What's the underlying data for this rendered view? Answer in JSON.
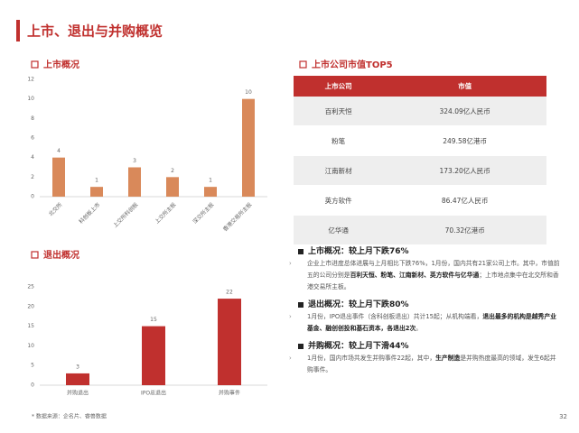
{
  "header": {
    "title": "上市、退出与并购概览"
  },
  "chart_data": [
    {
      "type": "bar",
      "title": "上市概况",
      "categories": [
        "北交所",
        "科创板上市",
        "上交所科创板",
        "上交所主板",
        "深交所主板",
        "香港交易所主板"
      ],
      "values": [
        4,
        1,
        3,
        2,
        1,
        10
      ],
      "color": "#d9895a",
      "ylim": [
        0,
        12
      ],
      "yticks": [
        0,
        2,
        4,
        6,
        8,
        10,
        12
      ]
    },
    {
      "type": "bar",
      "title": "退出概况",
      "categories": [
        "并购退出",
        "IPO总退出",
        "并购事件"
      ],
      "values": [
        3,
        15,
        22
      ],
      "color": "#c0302e",
      "ylim": [
        0,
        25
      ],
      "yticks": [
        0,
        5,
        10,
        15,
        20,
        25
      ]
    }
  ],
  "table": {
    "title": "上市公司市值TOP5",
    "columns": [
      "上市公司",
      "市值"
    ],
    "rows": [
      [
        "百利天恒",
        "324.09亿人民币"
      ],
      [
        "粉笔",
        "249.58亿港币"
      ],
      [
        "江南新材",
        "173.20亿人民币"
      ],
      [
        "英方软件",
        "86.47亿人民币"
      ],
      [
        "亿华通",
        "70.32亿港币"
      ]
    ]
  },
  "sections": [
    {
      "heading": "上市概况：较上月下跌76%",
      "text": [
        "企业上市进度总体进展与上月相比下跌76%，1月份，国内共有21家公司上市。其中，市值前五的公司分别是",
        "百利天恒、粉笔、江南新材、英方软件与亿华通",
        "；上市地点集中在北交所和香港交易所主板。"
      ]
    },
    {
      "heading": "退出概况：较上月下跌80%",
      "text": [
        "1月份，IPO退出事件（含科创板退出）共计15起；从机构端看，",
        "退出最多的机构是越秀产业基金、融创创投和基石资本，各退出2次",
        "。"
      ]
    },
    {
      "heading": "并购概况：较上月下滑44%",
      "text": [
        "1月份，国内市场共发生并购事件22起，其中，",
        "生产制造",
        "是并购热度最高的领域，发生6起并购事件。"
      ]
    }
  ],
  "footer": {
    "source": "* 数据来源：企名片、睿兽数据",
    "page": "32"
  }
}
